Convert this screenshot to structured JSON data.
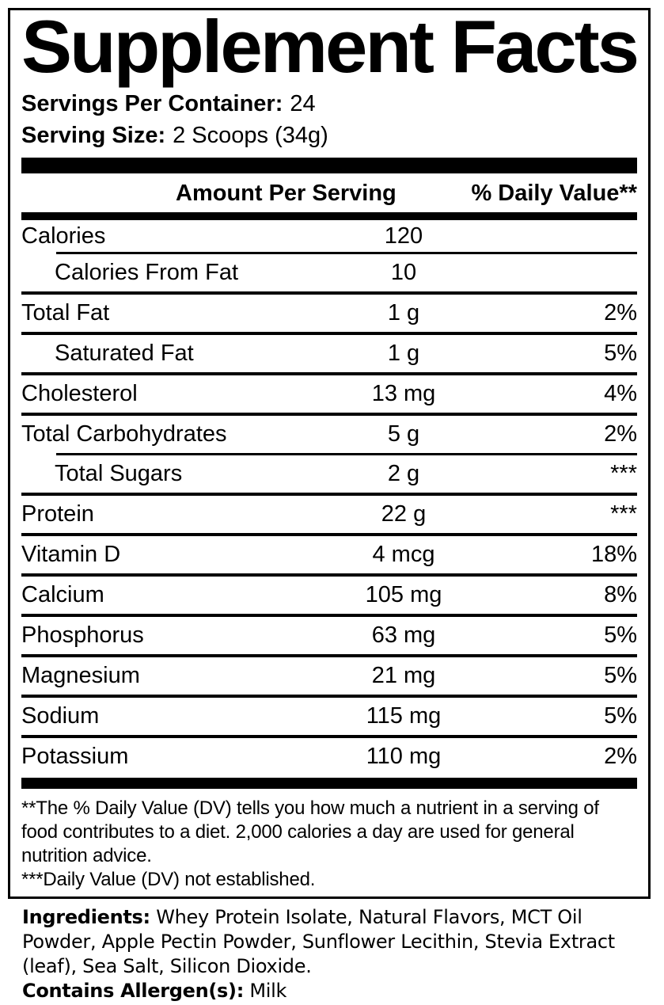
{
  "colors": {
    "text": "#000000",
    "background": "#ffffff"
  },
  "label": {
    "title": "Supplement Facts",
    "servings_per_container": {
      "label": "Servings Per Container:",
      "value": "24"
    },
    "serving_size": {
      "label": "Serving Size:",
      "value": "2 Scoops (34g)"
    },
    "columns": {
      "amount": "Amount Per Serving",
      "daily_value": "% Daily Value**"
    },
    "rows": [
      {
        "name": "Calories",
        "amount": "120",
        "dv": "",
        "indent": false,
        "sep": "indent",
        "short": true
      },
      {
        "name": "Calories From Fat",
        "amount": "10",
        "dv": "",
        "indent": true,
        "sep": "full"
      },
      {
        "name": "Total Fat",
        "amount": "1 g",
        "dv": "2%",
        "indent": false,
        "sep": "full"
      },
      {
        "name": "Saturated Fat",
        "amount": "1 g",
        "dv": "5%",
        "indent": true,
        "sep": "full"
      },
      {
        "name": "Cholesterol",
        "amount": "13 mg",
        "dv": "4%",
        "indent": false,
        "sep": "full"
      },
      {
        "name": "Total Carbohydrates",
        "amount": "5 g",
        "dv": "2%",
        "indent": false,
        "sep": "indent"
      },
      {
        "name": "Total Sugars",
        "amount": "2 g",
        "dv": "***",
        "indent": true,
        "sep": "full"
      },
      {
        "name": "Protein",
        "amount": "22 g",
        "dv": "***",
        "indent": false,
        "sep": "full"
      },
      {
        "name": "Vitamin D",
        "amount": "4 mcg",
        "dv": "18%",
        "indent": false,
        "sep": "full"
      },
      {
        "name": "Calcium",
        "amount": "105 mg",
        "dv": "8%",
        "indent": false,
        "sep": "full"
      },
      {
        "name": "Phosphorus",
        "amount": "63 mg",
        "dv": "5%",
        "indent": false,
        "sep": "full"
      },
      {
        "name": "Magnesium",
        "amount": "21 mg",
        "dv": "5%",
        "indent": false,
        "sep": "full"
      },
      {
        "name": "Sodium",
        "amount": "115 mg",
        "dv": "5%",
        "indent": false,
        "sep": "full"
      },
      {
        "name": "Potassium",
        "amount": "110 mg",
        "dv": "2%",
        "indent": false,
        "sep": "none"
      }
    ],
    "footnotes": [
      "**The % Daily Value (DV) tells you how much a nutrient in a serving of food contributes to a diet. 2,000 calories a day are used for general nutrition advice.",
      "***Daily Value (DV) not established."
    ]
  },
  "ingredients": {
    "label": "Ingredients:",
    "text": "Whey Protein Isolate, Natural Flavors, MCT Oil Powder, Apple Pectin Powder, Sunflower Lecithin, Stevia Extract (leaf), Sea Salt, Silicon Dioxide.",
    "allergen_label": "Contains Allergen(s):",
    "allergen_value": "Milk"
  }
}
